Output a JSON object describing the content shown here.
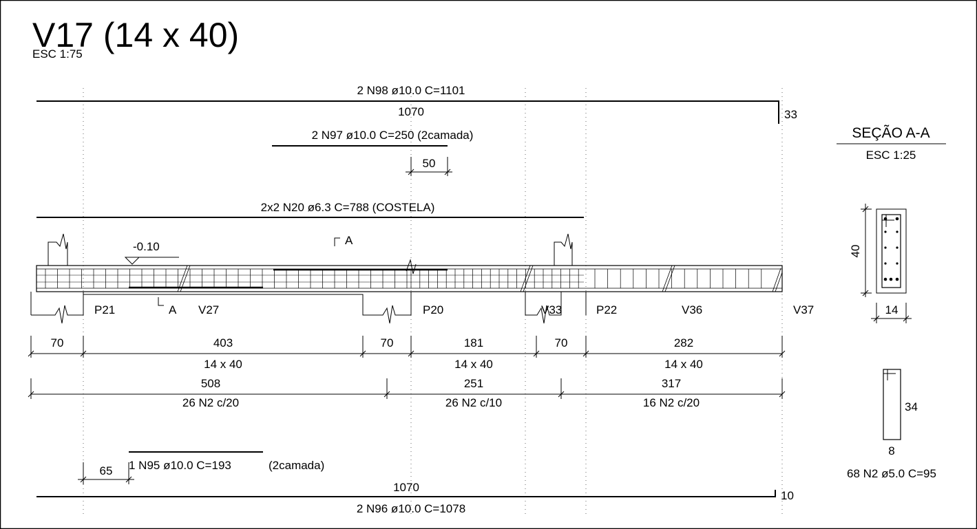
{
  "title": {
    "main": "V17 (14 x 40)",
    "scale": "ESC 1:75"
  },
  "top_bars": {
    "n98": {
      "label": "2 N98 ø10.0  C=1101",
      "length": "1070",
      "hook": "33"
    },
    "n97": {
      "label": "2 N97 ø10.0  C=250 (2camada)",
      "offset": "50"
    },
    "n20": {
      "label": "2x2 N20 ø6.3  C=788 (COSTELA)"
    }
  },
  "beam": {
    "level": "-0.10",
    "cut_label": "A"
  },
  "supports": [
    "P21",
    "V27",
    "P20",
    "V33",
    "P22",
    "V36",
    "V37"
  ],
  "spans_row1": [
    "70",
    "403",
    "70",
    "181",
    "70",
    "282"
  ],
  "sections_row1": [
    "14 x 40",
    "14 x 40",
    "14 x 40"
  ],
  "spans_row2": [
    "508",
    "251",
    "317"
  ],
  "stirrups_row2": [
    "26 N2 c/20",
    "26 N2 c/10",
    "16 N2 c/20"
  ],
  "bottom_bars": {
    "n95": {
      "label": "1 N95 ø10.0  C=193",
      "note": "(2camada)",
      "offset": "65"
    },
    "n96": {
      "length": "1070",
      "label": "2 N96 ø10.0  C=1078",
      "hook": "10"
    }
  },
  "section": {
    "title": "SEÇÃO A-A",
    "scale": "ESC 1:25",
    "height": "40",
    "width": "14"
  },
  "stirrup": {
    "height": "34",
    "width": "8",
    "label": "68 N2 ø5.0  C=95"
  }
}
